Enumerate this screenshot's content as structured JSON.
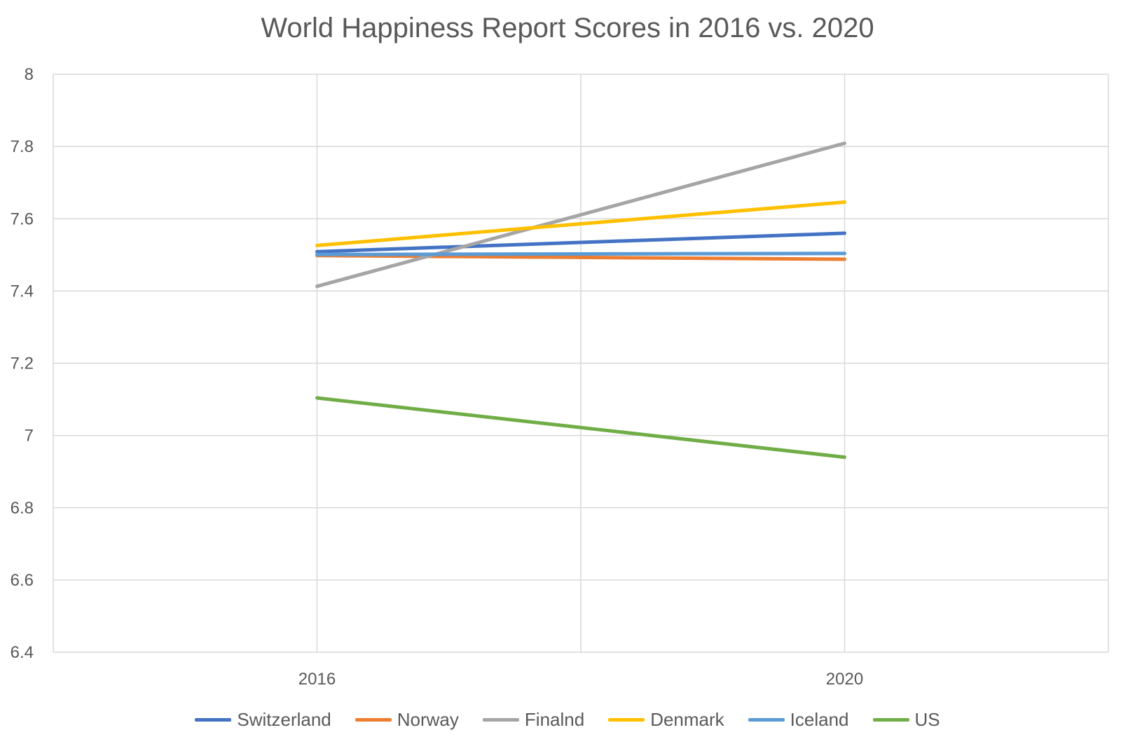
{
  "chart_data": {
    "type": "line",
    "title": "World Happiness Report Scores in 2016 vs. 2020",
    "xlabel": "",
    "ylabel": "",
    "x": [
      "2016",
      "2020"
    ],
    "ylim": [
      6.4,
      8
    ],
    "yticks": [
      "8",
      "7.8",
      "7.6",
      "7.4",
      "7.2",
      "7",
      "6.8",
      "6.6",
      "6.4"
    ],
    "grid": true,
    "legend_position": "bottom",
    "series": [
      {
        "name": "Switzerland",
        "values": [
          7.509,
          7.56
        ],
        "color": "#4472C4"
      },
      {
        "name": "Norway",
        "values": [
          7.498,
          7.488
        ],
        "color": "#ED7D31"
      },
      {
        "name": "Finalnd",
        "values": [
          7.413,
          7.809
        ],
        "color": "#A5A5A5"
      },
      {
        "name": "Denmark",
        "values": [
          7.526,
          7.646
        ],
        "color": "#FFC000"
      },
      {
        "name": "Iceland",
        "values": [
          7.501,
          7.504
        ],
        "color": "#5B9BD5"
      },
      {
        "name": "US",
        "values": [
          7.104,
          6.94
        ],
        "color": "#70AD47"
      }
    ]
  }
}
